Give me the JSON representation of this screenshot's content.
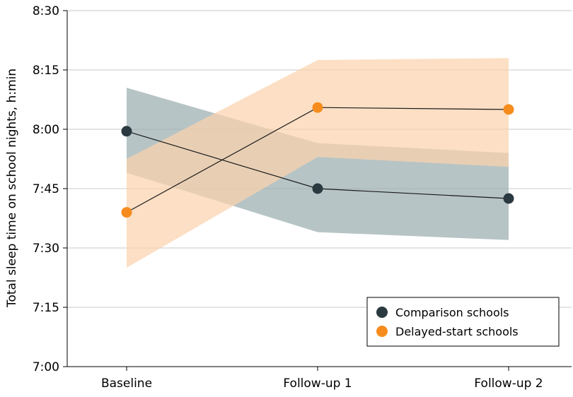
{
  "chart_data": {
    "type": "line",
    "title": "",
    "xlabel": "",
    "ylabel": "Total sleep time on school nights, h:min",
    "categories": [
      "Baseline",
      "Follow-up 1",
      "Follow-up 2"
    ],
    "y_tick_labels": [
      "7:00",
      "7:15",
      "7:30",
      "7:45",
      "8:00",
      "8:15",
      "8:30"
    ],
    "y_tick_minutes": [
      420,
      435,
      450,
      465,
      480,
      495,
      510
    ],
    "ylim_minutes": [
      420,
      510
    ],
    "grid": "horizontal",
    "legend_position": "bottom-right",
    "series": [
      {
        "name": "Comparison schools",
        "color": "#2b3a40",
        "band_color": "#9fb0b3",
        "values_minutes": [
          479.5,
          465.0,
          462.5
        ],
        "ci_lower_minutes": [
          469.0,
          454.0,
          452.0
        ],
        "ci_upper_minutes": [
          490.5,
          476.5,
          474.0
        ]
      },
      {
        "name": "Delayed-start schools",
        "color": "#f78c1e",
        "band_color": "#fbd3ad",
        "values_minutes": [
          459.0,
          485.5,
          485.0
        ],
        "ci_lower_minutes": [
          445.0,
          473.0,
          470.5
        ],
        "ci_upper_minutes": [
          472.5,
          497.5,
          498.0
        ]
      }
    ]
  }
}
